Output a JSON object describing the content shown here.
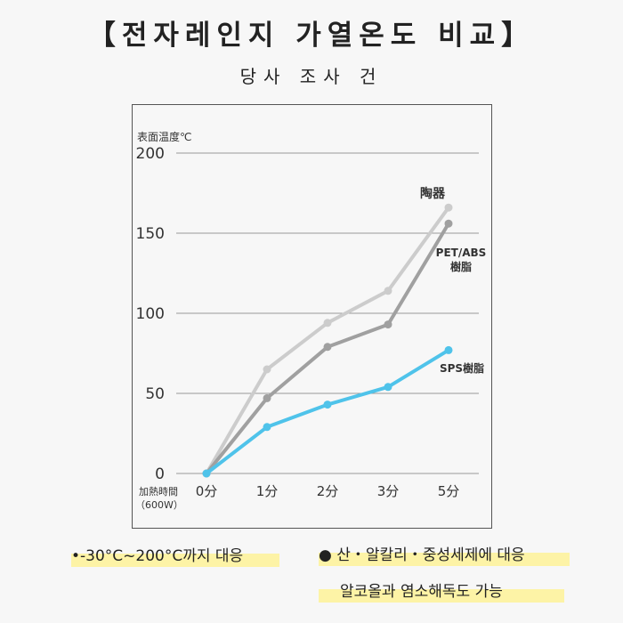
{
  "header": {
    "title": "【전자레인지 가열온도 비교】",
    "subtitle": "당사 조사 건"
  },
  "chart_data": {
    "type": "line",
    "y_label": "表面温度℃",
    "x_label": "加熱時間",
    "x_label_note": "（600W）",
    "categories": [
      "0分",
      "1分",
      "2分",
      "3分",
      "5分"
    ],
    "series": [
      {
        "name": "陶器",
        "color": "#cccccc",
        "values": [
          0,
          65,
          94,
          114,
          166
        ]
      },
      {
        "name": "PET/ABS樹脂",
        "color": "#a0a0a0",
        "values": [
          0,
          47,
          79,
          93,
          156
        ]
      },
      {
        "name": "SPS樹脂",
        "color": "#4fc3ea",
        "values": [
          0,
          29,
          43,
          54,
          77
        ]
      }
    ],
    "ylim": [
      0,
      200
    ],
    "yticks": [
      0,
      50,
      100,
      150,
      200
    ],
    "grid": true
  },
  "features": [
    "•-30°C~200°C까지 대응",
    "● 산・알칼리・중성세제에 대응",
    "알코올과 염소해독도 가능"
  ]
}
